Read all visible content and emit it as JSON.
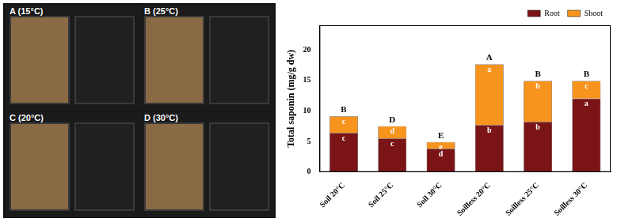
{
  "panels": [
    {
      "label": "A (15°C)"
    },
    {
      "label": "B (25°C)"
    },
    {
      "label": "C (20°C)"
    },
    {
      "label": "D (30°C)"
    }
  ],
  "chart_data": {
    "type": "bar",
    "stacked": true,
    "grid": false,
    "legend": "top-right",
    "y_label": "Total saponin (mg/g dw)",
    "categories": [
      "Soil 20°C",
      "Soil 25°C",
      "Soil 30°C",
      "Soilless 20°C",
      "Soilless 25°C",
      "Soilless 30°C"
    ],
    "series": [
      {
        "name": "Root",
        "color": "#7b1416",
        "values": [
          6.4,
          5.5,
          3.8,
          7.7,
          8.2,
          12.0
        ],
        "annotations": [
          "c",
          "c",
          "d",
          "b",
          "b",
          "a"
        ]
      },
      {
        "name": "Shoot",
        "color": "#f7941d",
        "values": [
          2.7,
          2.0,
          1.1,
          9.9,
          6.7,
          2.9
        ],
        "annotations": [
          "c",
          "d",
          "e",
          "a",
          "b",
          "c"
        ]
      }
    ],
    "annotations": [
      "B",
      "D",
      "E",
      "A",
      "B",
      "B"
    ],
    "ylim": [
      0,
      24
    ],
    "yticks": [
      0,
      5,
      10,
      15,
      20
    ]
  }
}
